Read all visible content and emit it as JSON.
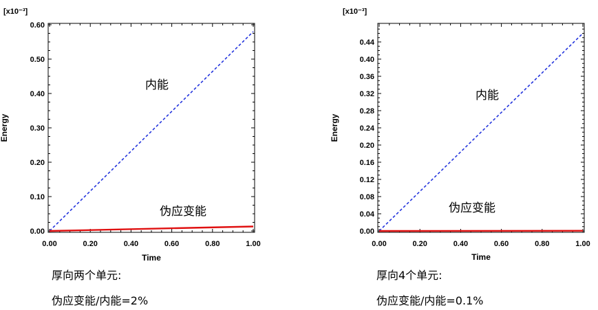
{
  "chart_data": [
    {
      "type": "line",
      "ylabel": "Energy",
      "xlabel": "Time",
      "y_scale_label": "[x10⁻³]",
      "xlim": [
        0,
        1
      ],
      "ylim": [
        0,
        0.6
      ],
      "x_ticks": [
        "0.00",
        "0.20",
        "0.40",
        "0.60",
        "0.80",
        "1.00"
      ],
      "y_ticks": [
        "0.00",
        "0.10",
        "0.20",
        "0.30",
        "0.40",
        "0.50",
        "0.60"
      ],
      "series": [
        {
          "name": "内能",
          "color": "#2233dd",
          "style": "dashed",
          "x": [
            0,
            1
          ],
          "y": [
            0,
            0.58
          ]
        },
        {
          "name": "伪应变能",
          "color": "#e01010",
          "style": "solid",
          "x": [
            0,
            1
          ],
          "y": [
            0,
            0.013
          ]
        }
      ],
      "captions": [
        "厚向两个单元:",
        "伪应变能/内能=2%"
      ]
    },
    {
      "type": "line",
      "ylabel": "Energy",
      "xlabel": "Time",
      "y_scale_label": "[x10⁻³]",
      "xlim": [
        0,
        1
      ],
      "ylim": [
        0,
        0.48
      ],
      "x_ticks": [
        "0.00",
        "0.20",
        "0.40",
        "0.60",
        "0.80",
        "1.00"
      ],
      "y_ticks": [
        "0.00",
        "0.04",
        "0.08",
        "0.12",
        "0.16",
        "0.20",
        "0.24",
        "0.28",
        "0.32",
        "0.36",
        "0.40",
        "0.44"
      ],
      "series": [
        {
          "name": "内能",
          "color": "#2233dd",
          "style": "dashed",
          "x": [
            0,
            1
          ],
          "y": [
            0,
            0.46
          ]
        },
        {
          "name": "伪应变能",
          "color": "#e01010",
          "style": "solid",
          "x": [
            0,
            1
          ],
          "y": [
            0,
            0.0005
          ]
        }
      ],
      "captions": [
        "厚向4个单元:",
        "伪应变能/内能=0.1%"
      ]
    }
  ]
}
